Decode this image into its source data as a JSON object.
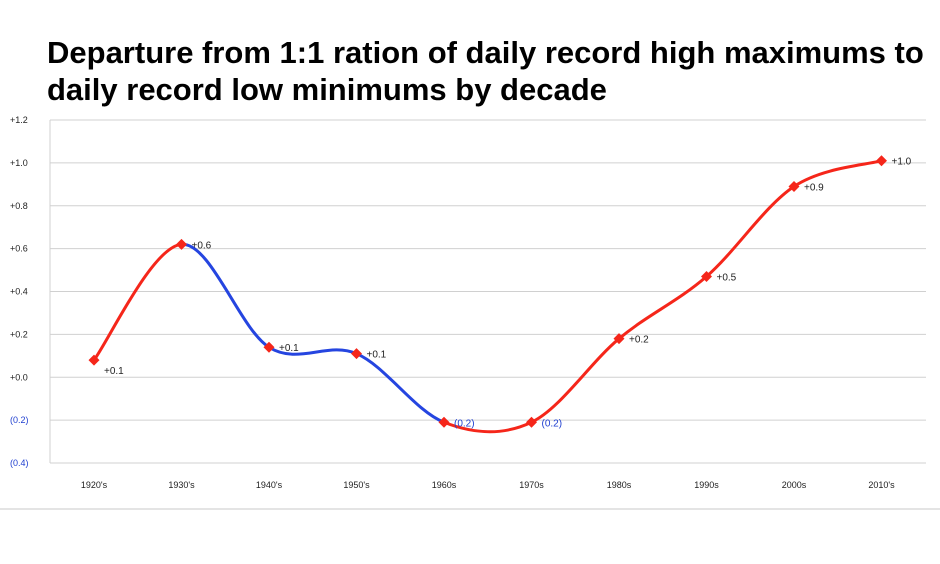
{
  "chart_data": {
    "type": "line",
    "title": "Departure from 1:1 ration of daily record high maximums to daily record low minimums by decade",
    "xlabel": "",
    "ylabel": "",
    "categories": [
      "1920's",
      "1930's",
      "1940's",
      "1950's",
      "1960s",
      "1970s",
      "1980s",
      "1990s",
      "2000s",
      "2010's"
    ],
    "series": [
      {
        "values": [
          0.08,
          0.62,
          0.14,
          0.11,
          -0.21,
          -0.21,
          0.18,
          0.47,
          0.89,
          1.01
        ],
        "data_labels": [
          "+0.1",
          "+0.6",
          "+0.1",
          "+0.1",
          "(0.2)",
          "(0.2)",
          "+0.2",
          "+0.5",
          "+0.9",
          "+1.0"
        ]
      }
    ],
    "ylim": [
      -0.4,
      1.2
    ],
    "yticks": [
      1.2,
      1.0,
      0.8,
      0.6,
      0.4,
      0.2,
      0.0,
      -0.2,
      -0.4
    ],
    "ytick_labels": [
      "+1.2",
      "+1.0",
      "+0.8",
      "+0.6",
      "+0.4",
      "+0.2",
      "+0.0",
      "(0.2)",
      "(0.4)"
    ],
    "grid": true,
    "legend": "none",
    "colors": {
      "marker": "#f5261a",
      "line_rising": "#f5261a",
      "line_falling": "#2545e0",
      "grid": "#d0d0d0",
      "negative_label": "#1f3fd0"
    }
  }
}
